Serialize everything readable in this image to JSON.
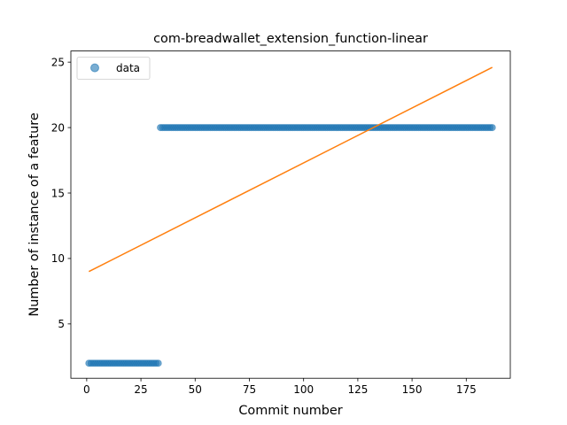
{
  "chart_data": {
    "type": "scatter",
    "title": "com-breadwallet_extension_function-linear",
    "xlabel": "Commit number",
    "ylabel": "Number of instance of a feature",
    "xlim": [
      -7.3,
      195.3
    ],
    "ylim": [
      0.85,
      25.85
    ],
    "xticks": [
      0,
      25,
      50,
      75,
      100,
      125,
      150,
      175
    ],
    "yticks": [
      5,
      10,
      15,
      20,
      25
    ],
    "grid": false,
    "legend": {
      "position": "upper-left",
      "entries": [
        "data"
      ]
    },
    "colors": {
      "data": "#1f77b4",
      "fit": "#ff7f0e"
    },
    "series": [
      {
        "name": "data",
        "kind": "scatter",
        "segments": [
          {
            "x_start": 1,
            "x_end": 33,
            "y": 2
          },
          {
            "x_start": 34,
            "x_end": 187,
            "y": 20
          }
        ]
      },
      {
        "kind": "line",
        "x": [
          1,
          187
        ],
        "y": [
          9.0,
          24.6
        ]
      }
    ]
  }
}
